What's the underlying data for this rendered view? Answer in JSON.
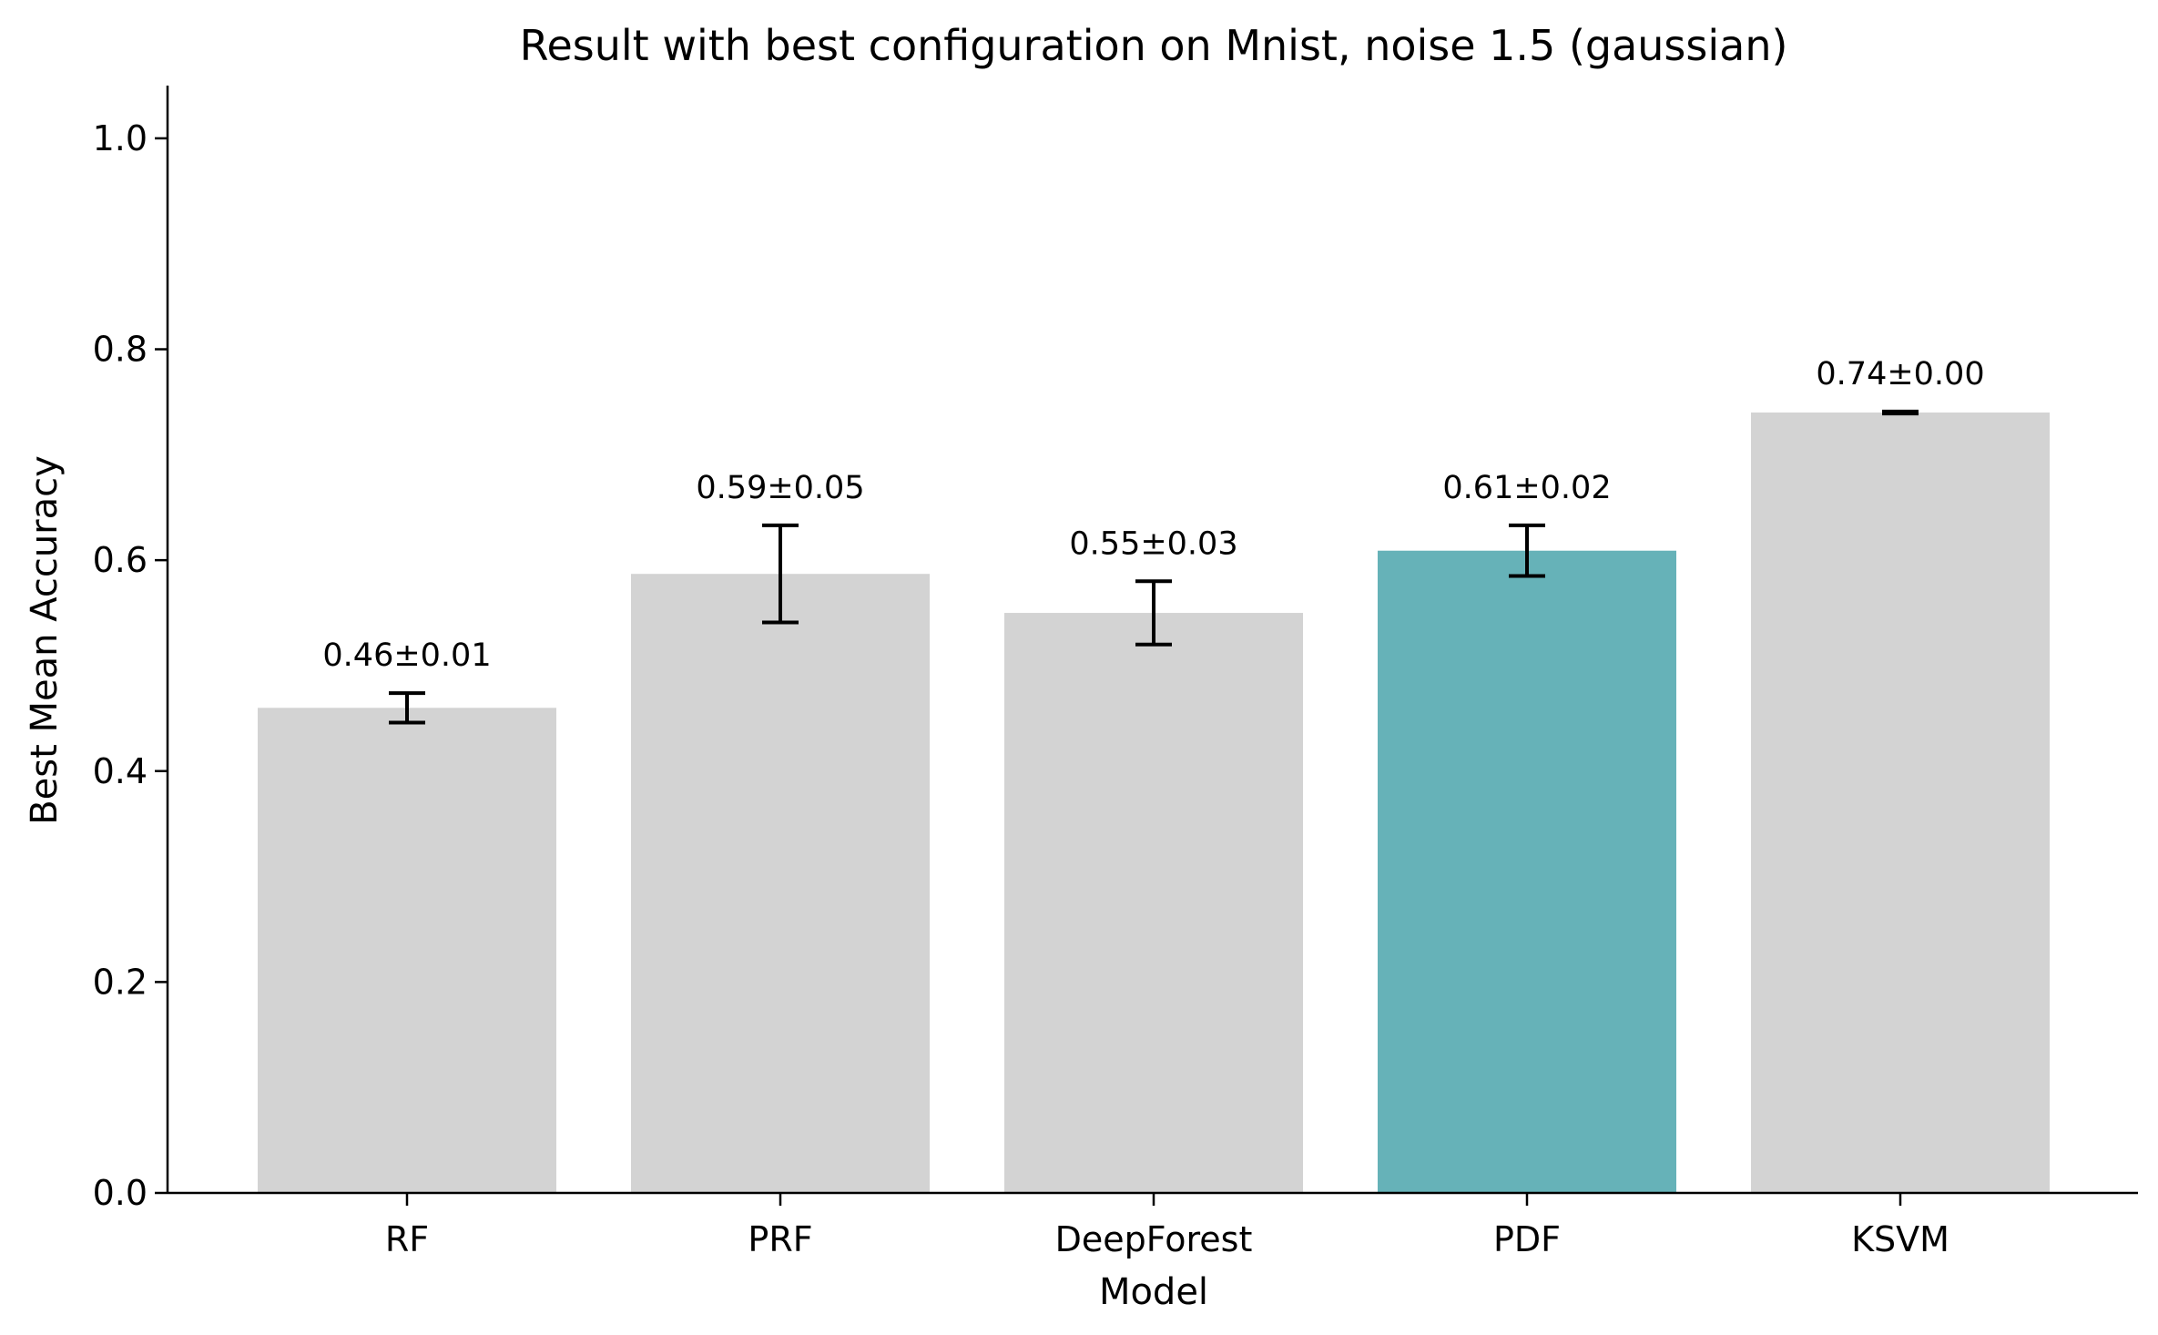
{
  "chart_data": {
    "type": "bar",
    "title": "Result with best configuration on Mnist, noise 1.5 (gaussian)",
    "xlabel": "Model",
    "ylabel": "Best Mean Accuracy",
    "categories": [
      "RF",
      "PRF",
      "DeepForest",
      "PDF",
      "KSVM"
    ],
    "values": [
      0.46,
      0.587,
      0.55,
      0.609,
      0.74
    ],
    "errors": [
      0.014,
      0.046,
      0.03,
      0.024,
      0.001
    ],
    "data_labels": [
      "0.46±0.01",
      "0.59±0.05",
      "0.55±0.03",
      "0.61±0.02",
      "0.74±0.00"
    ],
    "highlight_index": 3,
    "colors": {
      "default": "#d3d3d3",
      "highlight": "#66b2b8",
      "axis": "#000000",
      "error_bar": "#000000"
    },
    "ylim": [
      0,
      1.05
    ],
    "yticks": [
      0.0,
      0.2,
      0.4,
      0.6,
      0.8,
      1.0
    ],
    "ytick_labels": [
      "0.0",
      "0.2",
      "0.4",
      "0.6",
      "0.8",
      "1.0"
    ],
    "grid": false
  }
}
